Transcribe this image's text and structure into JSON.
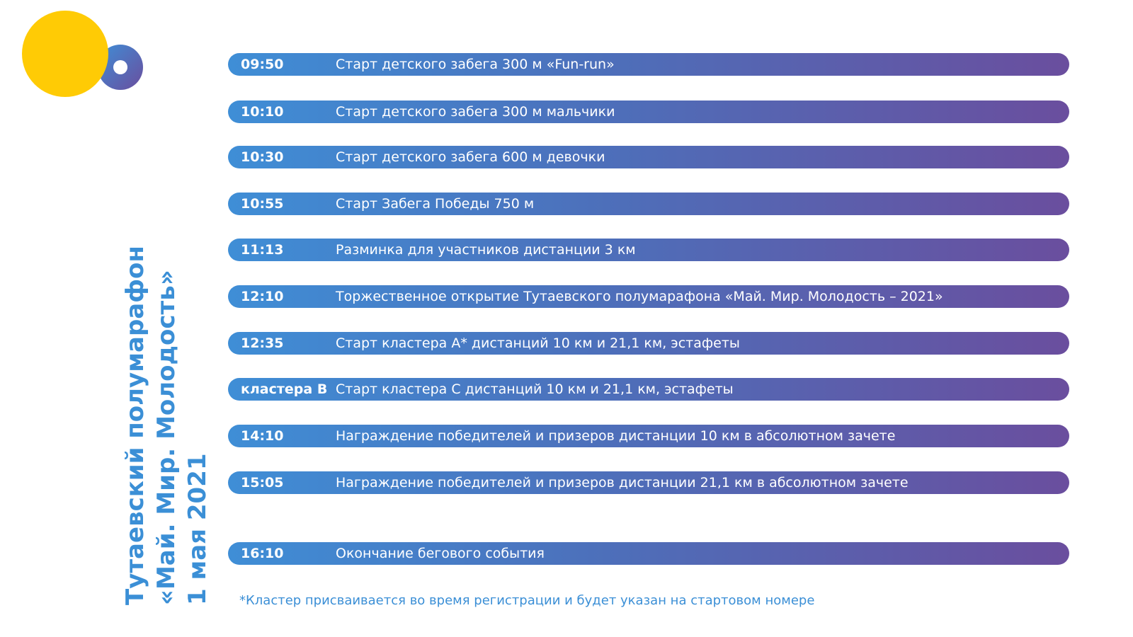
{
  "title": {
    "line1": "Тутаевский полумарафон",
    "line2": "«Май. Мир. Молодость»",
    "line3": "1 мая 2021"
  },
  "colors": {
    "yellow_circle": "#ffcb05",
    "ring_gradient_start": "#3f8ed6",
    "ring_gradient_end": "#6a4e9e",
    "title_blue": "#3b8fd6",
    "bar_start": "#3f8ed6",
    "bar_end": "#6a4e9e"
  },
  "schedule": [
    {
      "time": "09:50",
      "event": "Старт детского забега 300 м «Fun-run»"
    },
    {
      "time": "10:10",
      "event": "Старт детского забега 300 м мальчики"
    },
    {
      "time": "10:30",
      "event": "Старт детского забега 600 м девочки"
    },
    {
      "time": "10:55",
      "event": "Старт Забега Победы 750 м"
    },
    {
      "time": "11:13",
      "event": "Разминка для участников дистанции 3 км"
    },
    {
      "time": "12:10",
      "event": "Торжественное открытие Тутаевского полумарафона «Май. Мир. Молодость – 2021»"
    },
    {
      "time": "12:35",
      "event": "Старт кластера А* дистанций 10 км и 21,1 км, эстафеты"
    },
    {
      "time": "кластера В",
      "event": "Старт кластера С дистанций 10 км и 21,1 км, эстафеты"
    },
    {
      "time": "14:10",
      "event": "Награждение победителей и призеров дистанции 10 км в абсолютном зачете"
    },
    {
      "time": "15:05",
      "event": "Награждение победителей и призеров дистанции 21,1 км в абсолютном зачете"
    },
    {
      "time": "16:10",
      "event": "Окончание бегового события"
    }
  ],
  "footnote": "*Кластер присваивается во время регистрации и будет указан на стартовом номере"
}
